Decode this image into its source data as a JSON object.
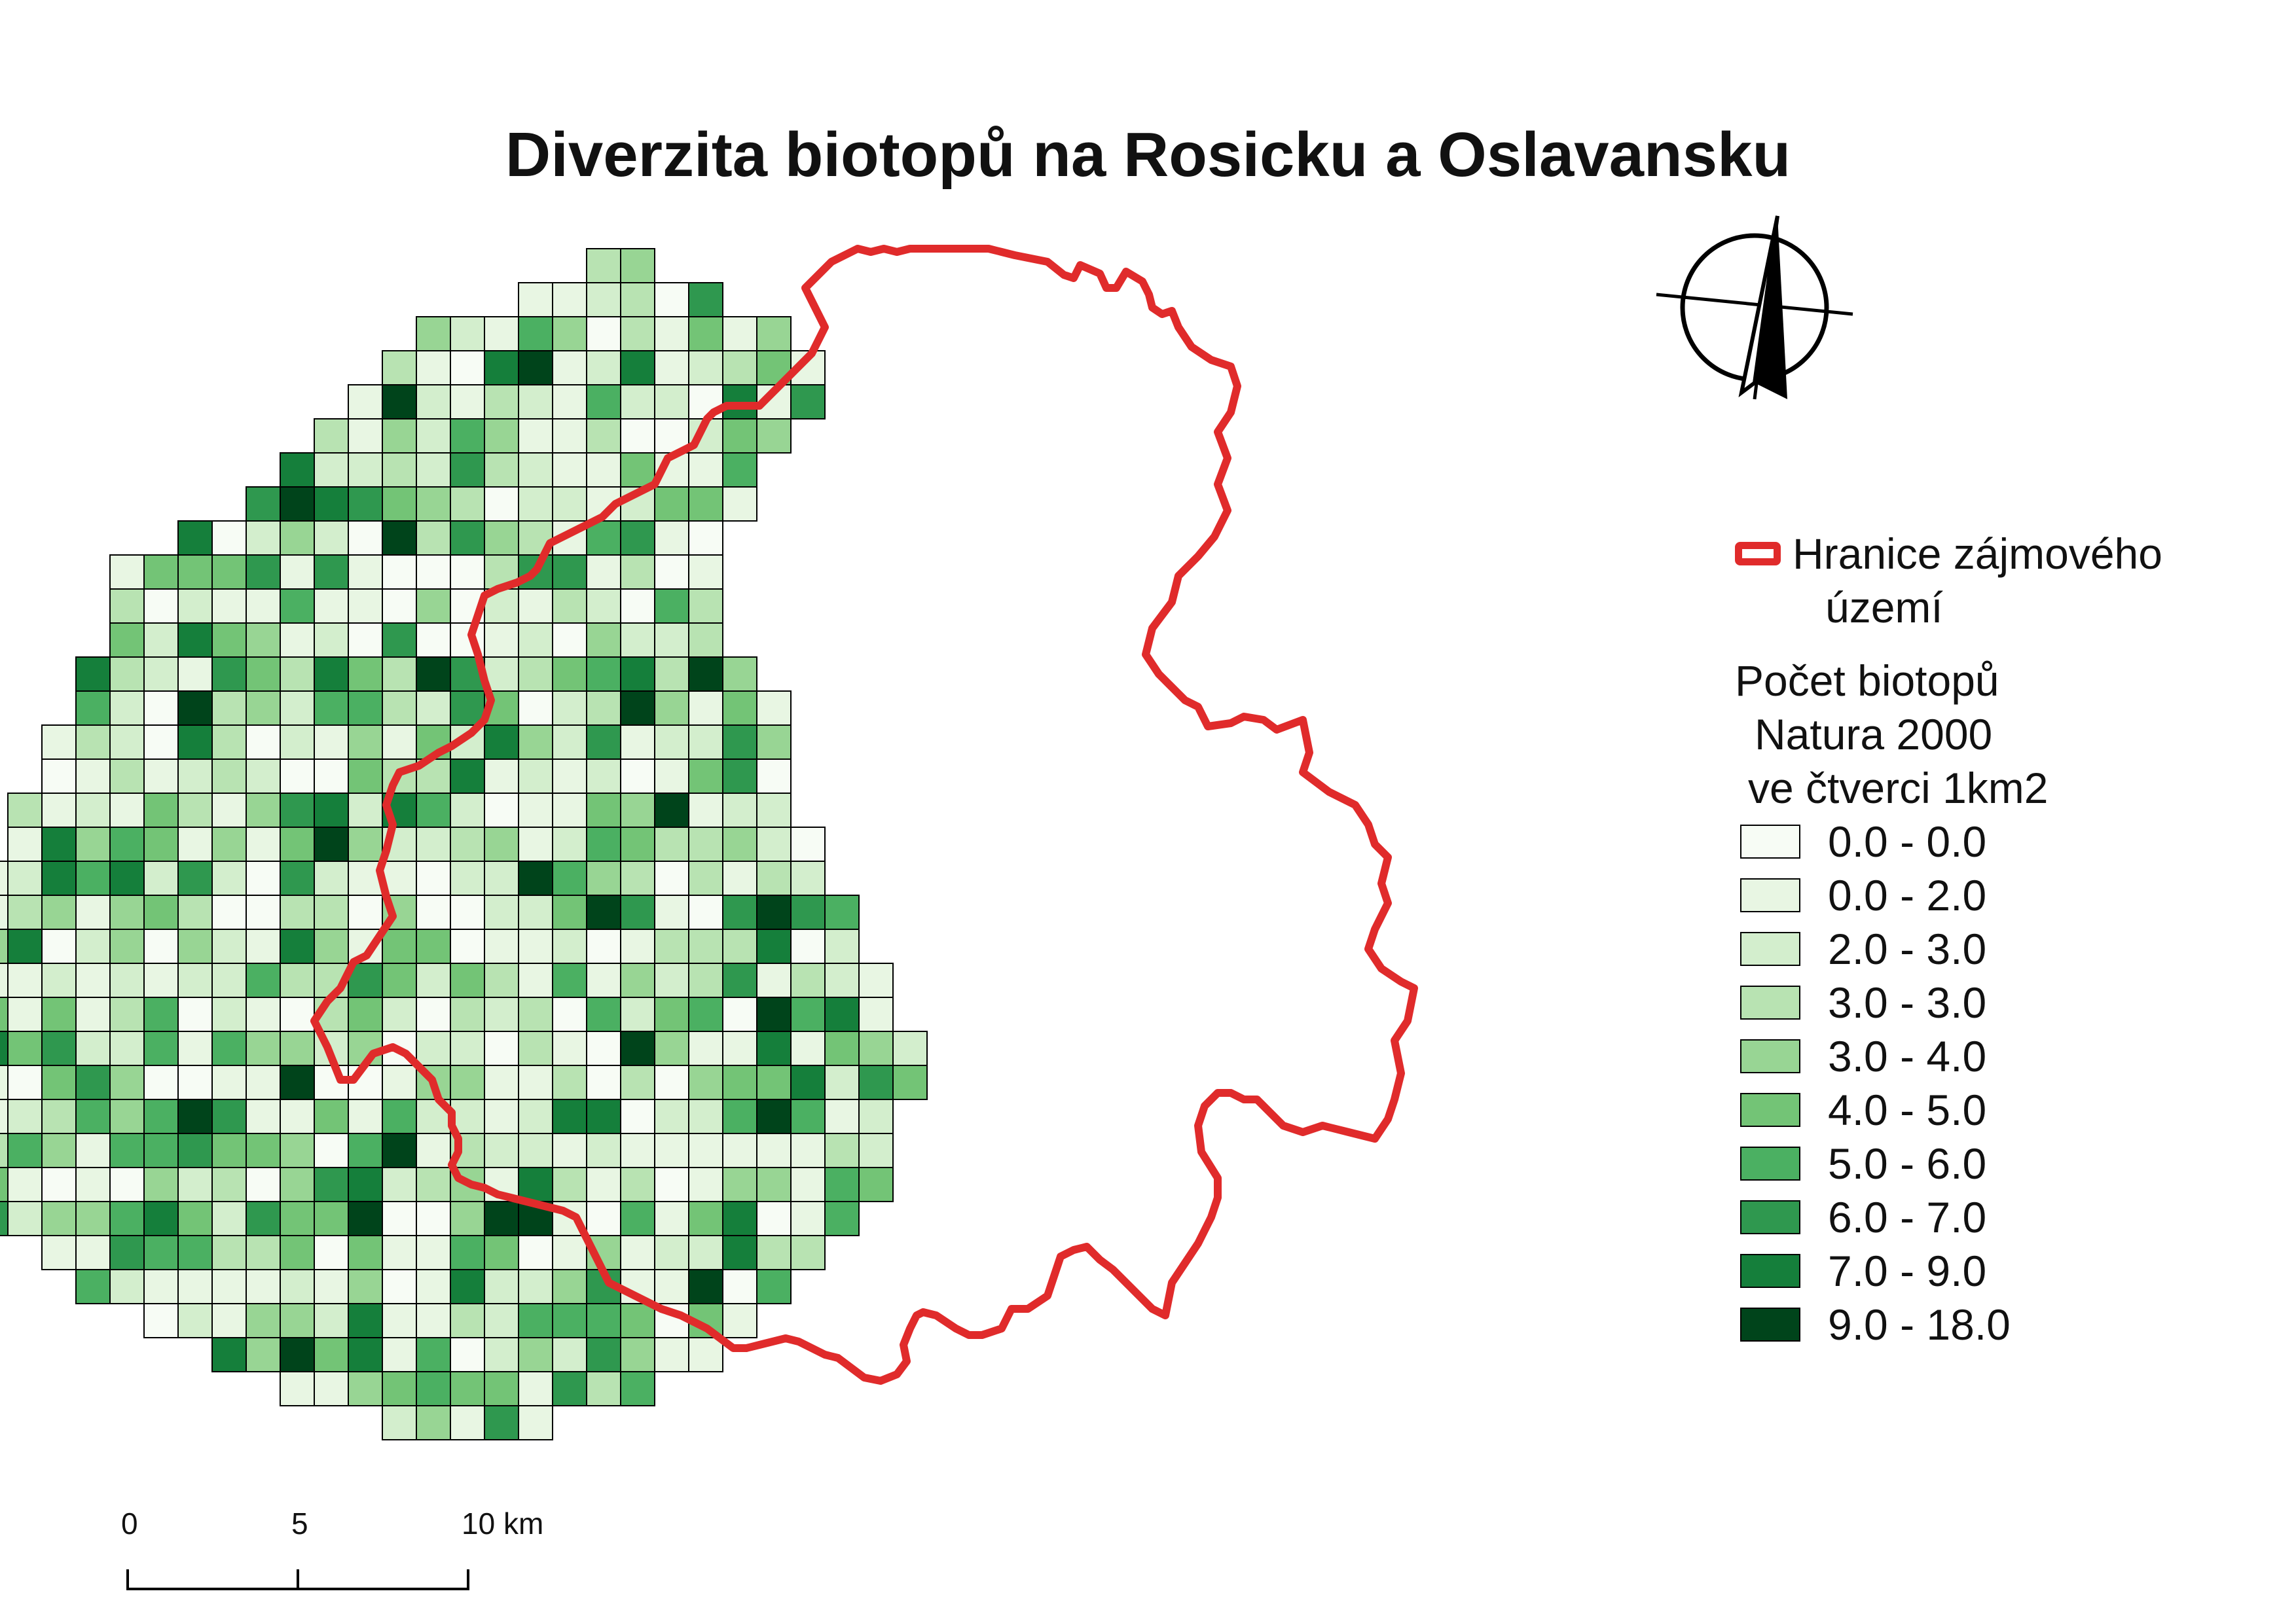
{
  "title": "Diverzita biotopů na Rosicku a Oslavansku",
  "legend": {
    "boundary_label_lines": [
      "Hranice zájmového",
      "území"
    ],
    "boundary_color": "#e02b2b",
    "heading_lines": [
      "Počet biotopů",
      "Natura 2000",
      "ve čtverci 1km2"
    ],
    "classes": [
      {
        "label": "0.0 - 0.0",
        "color": "#f7fcf5"
      },
      {
        "label": "0.0 - 2.0",
        "color": "#e8f6e3"
      },
      {
        "label": "2.0 - 3.0",
        "color": "#d3eecd"
      },
      {
        "label": "3.0 - 3.0",
        "color": "#b8e3b2"
      },
      {
        "label": "3.0 - 4.0",
        "color": "#98d594"
      },
      {
        "label": "4.0 - 5.0",
        "color": "#73c476"
      },
      {
        "label": "5.0 - 6.0",
        "color": "#4bb062"
      },
      {
        "label": "6.0 - 7.0",
        "color": "#2f984f"
      },
      {
        "label": "7.0 - 9.0",
        "color": "#157f3b"
      },
      {
        "label": "9.0 - 18.0",
        "color": "#00441b"
      }
    ]
  },
  "scale_bar": {
    "ticks": [
      {
        "label": "0",
        "km": 0
      },
      {
        "label": "5",
        "km": 5
      },
      {
        "label": "10 km",
        "km": 10
      }
    ]
  },
  "north_arrow_icon": "north-arrow-icon"
}
